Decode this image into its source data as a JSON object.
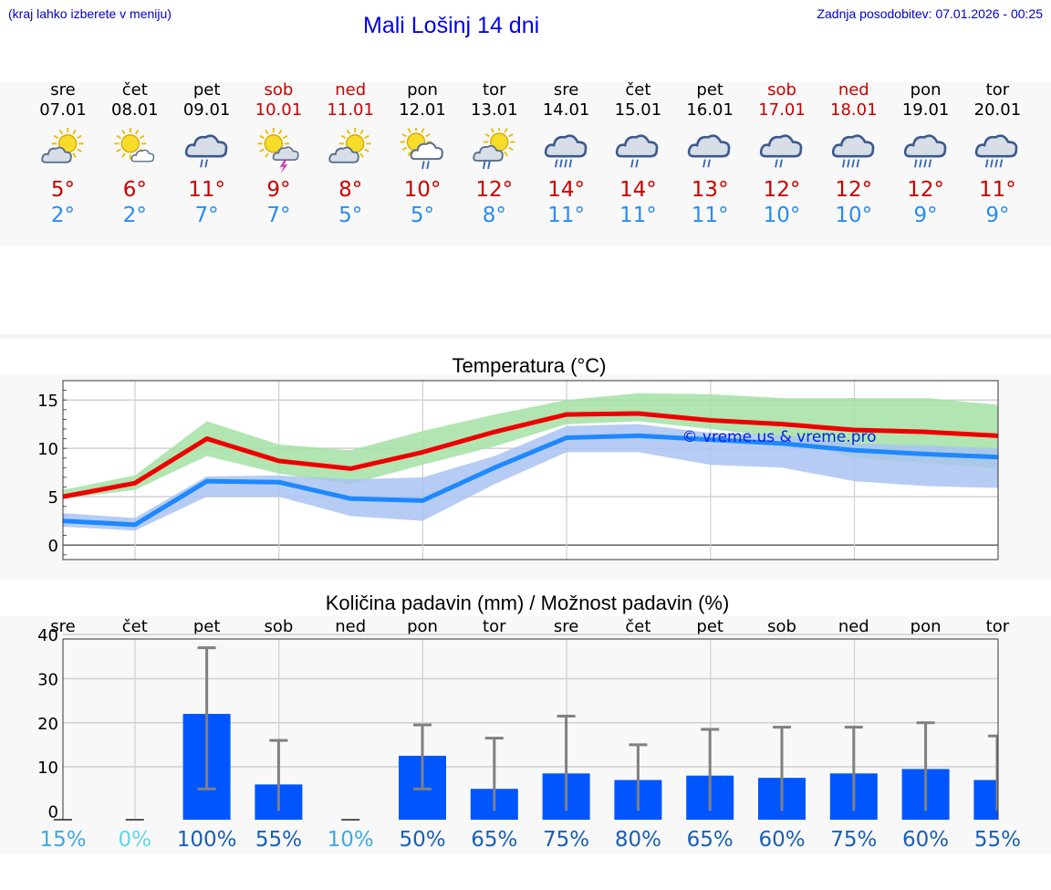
{
  "header": {
    "hint": "(kraj lahko izberete v meniju)",
    "title": "Mali Lošinj 14 dni",
    "updated": "Zadnja posodobitev: 07.01.2026 - 00:25"
  },
  "days": [
    {
      "name": "sre",
      "date": "07.01",
      "weekend": false,
      "icon": "sun-cloud-icon",
      "tmax": "5°",
      "tmin": "2°"
    },
    {
      "name": "čet",
      "date": "08.01",
      "weekend": false,
      "icon": "sun-small-cloud-icon",
      "tmax": "6°",
      "tmin": "2°"
    },
    {
      "name": "pet",
      "date": "09.01",
      "weekend": false,
      "icon": "cloud-rain-icon",
      "tmax": "11°",
      "tmin": "7°"
    },
    {
      "name": "sob",
      "date": "10.01",
      "weekend": true,
      "icon": "sun-thunder-icon",
      "tmax": "9°",
      "tmin": "7°"
    },
    {
      "name": "ned",
      "date": "11.01",
      "weekend": true,
      "icon": "sun-cloud-icon",
      "tmax": "8°",
      "tmin": "5°"
    },
    {
      "name": "pon",
      "date": "12.01",
      "weekend": false,
      "icon": "sun-cloud-rain-icon",
      "tmax": "10°",
      "tmin": "5°"
    },
    {
      "name": "tor",
      "date": "13.01",
      "weekend": false,
      "icon": "sun-cloud-drizzle-icon",
      "tmax": "12°",
      "tmin": "8°"
    },
    {
      "name": "sre",
      "date": "14.01",
      "weekend": false,
      "icon": "cloud-heavy-rain-icon",
      "tmax": "14°",
      "tmin": "11°"
    },
    {
      "name": "čet",
      "date": "15.01",
      "weekend": false,
      "icon": "cloud-rain-icon",
      "tmax": "14°",
      "tmin": "11°"
    },
    {
      "name": "pet",
      "date": "16.01",
      "weekend": false,
      "icon": "cloud-rain-icon",
      "tmax": "13°",
      "tmin": "11°"
    },
    {
      "name": "sob",
      "date": "17.01",
      "weekend": true,
      "icon": "cloud-rain-icon",
      "tmax": "12°",
      "tmin": "10°"
    },
    {
      "name": "ned",
      "date": "18.01",
      "weekend": true,
      "icon": "cloud-heavy-rain-icon",
      "tmax": "12°",
      "tmin": "10°"
    },
    {
      "name": "pon",
      "date": "19.01",
      "weekend": false,
      "icon": "cloud-heavy-rain-icon",
      "tmax": "12°",
      "tmin": "9°"
    },
    {
      "name": "tor",
      "date": "20.01",
      "weekend": false,
      "icon": "cloud-heavy-rain-icon",
      "tmax": "11°",
      "tmin": "9°"
    }
  ],
  "chart_data": [
    {
      "type": "line",
      "title": "Temperatura (°C)",
      "watermark": "© vreme.us & vreme.pro",
      "ylim": [
        -1.5,
        17
      ],
      "yticks": [
        "0",
        "5",
        "10",
        "15"
      ],
      "x": [
        0,
        1,
        2,
        3,
        4,
        5,
        6,
        7,
        8,
        9,
        10,
        11,
        12,
        13
      ],
      "series": [
        {
          "name": "max",
          "color": "#ee0000",
          "values": [
            5.0,
            6.4,
            11.0,
            8.7,
            7.9,
            9.6,
            11.7,
            13.5,
            13.6,
            12.9,
            12.5,
            11.9,
            11.7,
            11.3
          ],
          "band_low": [
            4.8,
            5.7,
            9.2,
            7.4,
            6.3,
            8.3,
            10.2,
            12.5,
            12.8,
            12.0,
            11.1,
            9.0,
            8.5,
            7.9
          ],
          "band_high": [
            5.7,
            7.2,
            12.8,
            10.4,
            9.8,
            11.8,
            13.5,
            15.0,
            15.7,
            15.6,
            15.2,
            15.2,
            15.2,
            14.5
          ],
          "band_color": "#a3e0a3"
        },
        {
          "name": "min",
          "color": "#1e88ff",
          "values": [
            2.5,
            2.1,
            6.6,
            6.5,
            4.8,
            4.6,
            8.0,
            11.1,
            11.3,
            10.9,
            10.5,
            9.8,
            9.4,
            9.1
          ],
          "band_low": [
            1.9,
            1.5,
            5.0,
            5.0,
            3.0,
            2.5,
            6.3,
            9.6,
            9.6,
            8.3,
            8.0,
            6.6,
            6.1,
            5.9
          ],
          "band_high": [
            3.3,
            2.8,
            7.1,
            7.2,
            6.8,
            7.0,
            9.2,
            12.3,
            12.5,
            11.6,
            11.4,
            10.5,
            10.3,
            10.0
          ],
          "band_color": "#a9c3f2"
        }
      ]
    },
    {
      "type": "bar",
      "title": "Količina padavin (mm) / Možnost padavin (%)",
      "ylim": [
        -2,
        39
      ],
      "yticks": [
        "0",
        "10",
        "20",
        "30",
        "40"
      ],
      "categories": [
        "sre",
        "čet",
        "pet",
        "sob",
        "ned",
        "pon",
        "tor",
        "sre",
        "čet",
        "pet",
        "sob",
        "ned",
        "pon",
        "tor"
      ],
      "values": [
        0,
        0,
        22,
        6,
        0,
        12.5,
        5,
        8.5,
        7,
        8,
        7.5,
        8.5,
        9.5,
        7
      ],
      "err_low": [
        0,
        0,
        5,
        0,
        0,
        5,
        0,
        0,
        0,
        0,
        0,
        0,
        0,
        0
      ],
      "err_high": [
        0,
        0,
        37,
        16,
        0,
        19.5,
        16.5,
        21.5,
        15,
        18.5,
        19,
        19,
        20,
        17
      ],
      "probability": [
        "15%",
        "0%",
        "100%",
        "55%",
        "10%",
        "50%",
        "65%",
        "75%",
        "80%",
        "65%",
        "60%",
        "75%",
        "60%",
        "55%"
      ],
      "prob_colors": [
        "#3fa9e0",
        "#5fd8e8",
        "#1a5fb4",
        "#1a5fb4",
        "#3fa9e0",
        "#1a5fb4",
        "#1a5fb4",
        "#1a5fb4",
        "#1a5fb4",
        "#1a5fb4",
        "#1a5fb4",
        "#1a5fb4",
        "#1a5fb4",
        "#1a5fb4"
      ],
      "bar_color": "#0055ff",
      "error_color": "#808080"
    }
  ]
}
